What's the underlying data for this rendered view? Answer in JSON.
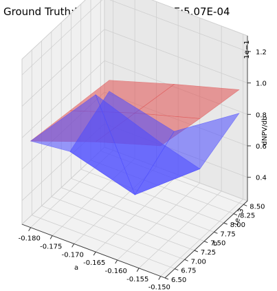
{
  "title": "Ground Truth:Red, VML: Blue. MSE:5.07E-04",
  "chart_data": {
    "type": "surface3d",
    "title": "Ground Truth:Red, VML: Blue. MSE:5.07E-04",
    "xlabel": "a",
    "ylabel": "b",
    "zlabel": "dNPV/db",
    "x_ticks": [
      "-0.180",
      "-0.175",
      "-0.170",
      "-0.165",
      "-0.160",
      "-0.155",
      "-0.150"
    ],
    "y_ticks": [
      "6.50",
      "6.75",
      "7.00",
      "7.25",
      "7.50",
      "7.75",
      "8.00",
      "8.25",
      "8.50"
    ],
    "z_ticks": [
      "0.4",
      "0.6",
      "0.8",
      "1.0",
      "1.2"
    ],
    "y_offset": "1e−3",
    "z_offset": "1e−1",
    "xlim": [
      -0.182,
      -0.149
    ],
    "ylim": [
      0.0065,
      0.0086
    ],
    "zlim": [
      0.025,
      0.13
    ],
    "grid": true,
    "series": [
      {
        "name": "Ground Truth",
        "color": "#e05050",
        "x": [
          -0.18,
          -0.165,
          -0.15
        ],
        "y": [
          0.0065,
          0.0075,
          0.0085
        ],
        "z": [
          [
            0.08,
            0.095,
            0.108
          ],
          [
            0.076,
            0.09,
            0.102
          ],
          [
            0.072,
            0.085,
            0.097
          ]
        ]
      },
      {
        "name": "VML",
        "color": "#4a4aff",
        "x": [
          -0.18,
          -0.165,
          -0.15
        ],
        "y": [
          0.0065,
          0.0075,
          0.0085
        ],
        "z": [
          [
            0.08,
            0.125,
            0.11
          ],
          [
            0.05,
            0.038,
            0.07
          ],
          [
            0.065,
            0.055,
            0.082
          ]
        ]
      }
    ]
  }
}
